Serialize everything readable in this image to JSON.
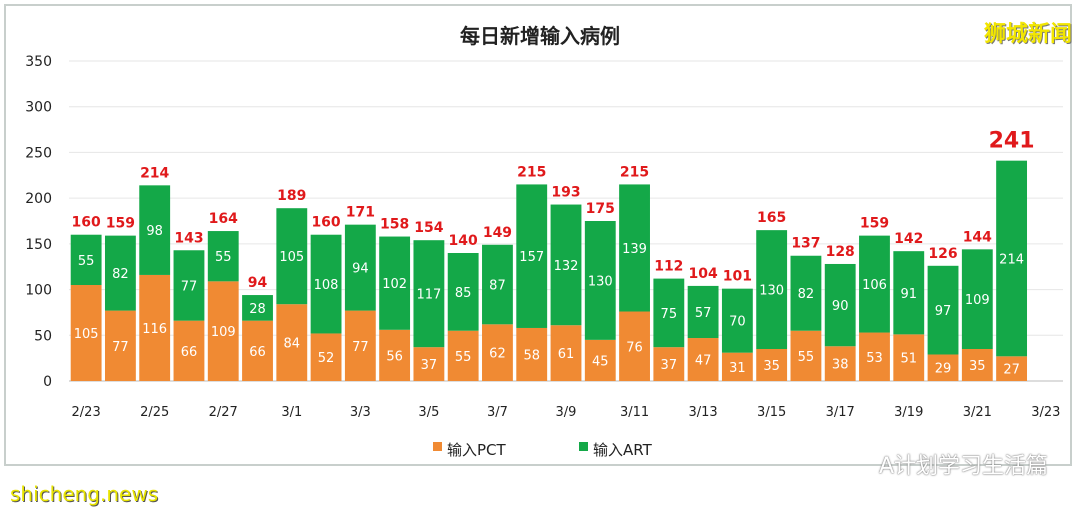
{
  "chart_data": {
    "type": "bar",
    "stacked": true,
    "title": "每日新增输入病例",
    "categories": [
      "2/23",
      "2/24",
      "2/25",
      "2/26",
      "2/27",
      "2/28",
      "3/1",
      "3/2",
      "3/3",
      "3/4",
      "3/5",
      "3/6",
      "3/7",
      "3/8",
      "3/9",
      "3/10",
      "3/11",
      "3/12",
      "3/13",
      "3/14",
      "3/15",
      "3/16",
      "3/17",
      "3/18",
      "3/19",
      "3/20",
      "3/21",
      "3/22"
    ],
    "tick_labels": [
      "2/23",
      "2/25",
      "2/27",
      "3/1",
      "3/3",
      "3/5",
      "3/7",
      "3/9",
      "3/11",
      "3/13",
      "3/15",
      "3/17",
      "3/19",
      "3/21",
      "3/23"
    ],
    "series": [
      {
        "name": "输入PCT",
        "color": "#f08a33",
        "values": [
          105,
          77,
          116,
          66,
          109,
          66,
          84,
          52,
          77,
          56,
          37,
          55,
          62,
          58,
          61,
          45,
          76,
          37,
          47,
          31,
          35,
          55,
          38,
          53,
          51,
          29,
          35,
          27
        ]
      },
      {
        "name": "输入ART",
        "color": "#14a848",
        "values": [
          55,
          82,
          98,
          77,
          55,
          28,
          105,
          108,
          94,
          102,
          117,
          85,
          87,
          157,
          132,
          130,
          139,
          75,
          57,
          70,
          130,
          82,
          90,
          106,
          91,
          97,
          109,
          214
        ]
      }
    ],
    "totals": [
      160,
      159,
      214,
      143,
      164,
      94,
      189,
      160,
      171,
      158,
      154,
      140,
      149,
      215,
      193,
      175,
      215,
      112,
      104,
      101,
      165,
      137,
      128,
      159,
      142,
      126,
      144,
      241
    ],
    "total_label_color": "#e0191b",
    "ylim": [
      0,
      350
    ],
    "yticks": [
      0,
      50,
      100,
      150,
      200,
      250,
      300,
      350
    ],
    "grid": true,
    "legend": "bottom"
  },
  "watermarks": {
    "top_right": "狮城新闻",
    "bottom_right": "A计划学习生活篇",
    "bottom_left": "shicheng.news"
  }
}
